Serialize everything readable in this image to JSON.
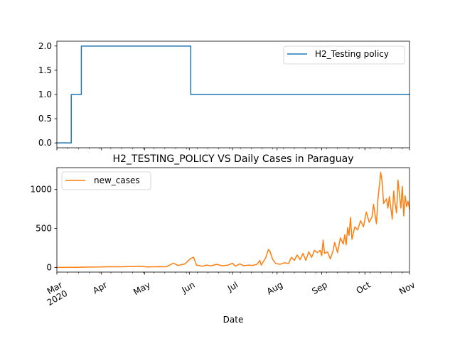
{
  "chart_data": [
    {
      "type": "line",
      "title": "",
      "xlabel": "",
      "ylabel": "",
      "ylim": [
        -0.1,
        2.1
      ],
      "yticks": [
        0.0,
        0.5,
        1.0,
        1.5,
        2.0
      ],
      "ytick_labels": [
        "0.0",
        "0.5",
        "1.0",
        "1.5",
        "2.0"
      ],
      "legend_position": "upper-right",
      "series": [
        {
          "name": "H2_Testing policy",
          "color": "#1f77b4",
          "drawstyle": "steps",
          "points": [
            [
              "2020-03-01",
              0
            ],
            [
              "2020-03-11",
              0
            ],
            [
              "2020-03-11",
              1
            ],
            [
              "2020-03-18",
              1
            ],
            [
              "2020-03-18",
              2
            ],
            [
              "2020-06-02",
              2
            ],
            [
              "2020-06-02",
              1
            ],
            [
              "2020-11-01",
              1
            ]
          ]
        }
      ]
    },
    {
      "type": "line",
      "title": "H2_TESTING_POLICY VS Daily Cases in Paraguay",
      "xlabel": "Date",
      "ylabel": "",
      "ylim": [
        -60,
        1280
      ],
      "yticks": [
        0,
        500,
        1000
      ],
      "ytick_labels": [
        "0",
        "500",
        "1000"
      ],
      "xlim": [
        "2020-03-01",
        "2020-11-01"
      ],
      "xticks": [
        "2020-03-01",
        "2020-04-01",
        "2020-05-01",
        "2020-06-01",
        "2020-07-01",
        "2020-08-01",
        "2020-09-01",
        "2020-10-01",
        "2020-11-01"
      ],
      "xtick_labels": [
        "Mar\n2020",
        "Apr",
        "May",
        "Jun",
        "Jul",
        "Aug",
        "Sep",
        "Oct",
        "Nov"
      ],
      "legend_position": "upper-left",
      "series": [
        {
          "name": "new_cases",
          "color": "#ff7f0e",
          "points": [
            [
              "2020-03-01",
              0
            ],
            [
              "2020-03-15",
              2
            ],
            [
              "2020-03-25",
              5
            ],
            [
              "2020-04-01",
              6
            ],
            [
              "2020-04-08",
              10
            ],
            [
              "2020-04-15",
              8
            ],
            [
              "2020-04-22",
              12
            ],
            [
              "2020-04-28",
              14
            ],
            [
              "2020-05-03",
              6
            ],
            [
              "2020-05-10",
              10
            ],
            [
              "2020-05-16",
              8
            ],
            [
              "2020-05-21",
              55
            ],
            [
              "2020-05-24",
              25
            ],
            [
              "2020-05-29",
              45
            ],
            [
              "2020-06-02",
              115
            ],
            [
              "2020-06-04",
              130
            ],
            [
              "2020-06-06",
              30
            ],
            [
              "2020-06-10",
              15
            ],
            [
              "2020-06-13",
              30
            ],
            [
              "2020-06-16",
              20
            ],
            [
              "2020-06-20",
              40
            ],
            [
              "2020-06-24",
              20
            ],
            [
              "2020-06-28",
              30
            ],
            [
              "2020-07-01",
              55
            ],
            [
              "2020-07-03",
              15
            ],
            [
              "2020-07-06",
              45
            ],
            [
              "2020-07-09",
              20
            ],
            [
              "2020-07-12",
              30
            ],
            [
              "2020-07-15",
              25
            ],
            [
              "2020-07-18",
              40
            ],
            [
              "2020-07-20",
              90
            ],
            [
              "2020-07-21",
              30
            ],
            [
              "2020-07-24",
              120
            ],
            [
              "2020-07-26",
              230
            ],
            [
              "2020-07-27",
              210
            ],
            [
              "2020-07-29",
              100
            ],
            [
              "2020-07-31",
              50
            ],
            [
              "2020-08-03",
              40
            ],
            [
              "2020-08-06",
              60
            ],
            [
              "2020-08-09",
              50
            ],
            [
              "2020-08-11",
              130
            ],
            [
              "2020-08-13",
              90
            ],
            [
              "2020-08-15",
              160
            ],
            [
              "2020-08-17",
              100
            ],
            [
              "2020-08-19",
              180
            ],
            [
              "2020-08-21",
              90
            ],
            [
              "2020-08-23",
              200
            ],
            [
              "2020-08-25",
              130
            ],
            [
              "2020-08-27",
              220
            ],
            [
              "2020-08-29",
              190
            ],
            [
              "2020-08-31",
              220
            ],
            [
              "2020-09-01",
              150
            ],
            [
              "2020-09-02",
              350
            ],
            [
              "2020-09-03",
              180
            ],
            [
              "2020-09-05",
              200
            ],
            [
              "2020-09-07",
              110
            ],
            [
              "2020-09-09",
              220
            ],
            [
              "2020-09-10",
              320
            ],
            [
              "2020-09-12",
              190
            ],
            [
              "2020-09-14",
              380
            ],
            [
              "2020-09-16",
              300
            ],
            [
              "2020-09-17",
              420
            ],
            [
              "2020-09-18",
              290
            ],
            [
              "2020-09-19",
              510
            ],
            [
              "2020-09-20",
              410
            ],
            [
              "2020-09-21",
              640
            ],
            [
              "2020-09-22",
              360
            ],
            [
              "2020-09-24",
              520
            ],
            [
              "2020-09-26",
              480
            ],
            [
              "2020-09-28",
              600
            ],
            [
              "2020-09-30",
              520
            ],
            [
              "2020-10-02",
              710
            ],
            [
              "2020-10-04",
              580
            ],
            [
              "2020-10-06",
              650
            ],
            [
              "2020-10-07",
              810
            ],
            [
              "2020-10-09",
              560
            ],
            [
              "2020-10-10",
              860
            ],
            [
              "2020-10-12",
              1220
            ],
            [
              "2020-10-13",
              1100
            ],
            [
              "2020-10-14",
              820
            ],
            [
              "2020-10-16",
              880
            ],
            [
              "2020-10-17",
              760
            ],
            [
              "2020-10-18",
              910
            ],
            [
              "2020-10-20",
              620
            ],
            [
              "2020-10-21",
              980
            ],
            [
              "2020-10-22",
              820
            ],
            [
              "2020-10-23",
              700
            ],
            [
              "2020-10-24",
              1120
            ],
            [
              "2020-10-25",
              940
            ],
            [
              "2020-10-26",
              760
            ],
            [
              "2020-10-27",
              1040
            ],
            [
              "2020-10-28",
              660
            ],
            [
              "2020-10-29",
              920
            ],
            [
              "2020-10-30",
              780
            ],
            [
              "2020-10-31",
              850
            ],
            [
              "2020-11-01",
              750
            ]
          ]
        }
      ]
    }
  ]
}
